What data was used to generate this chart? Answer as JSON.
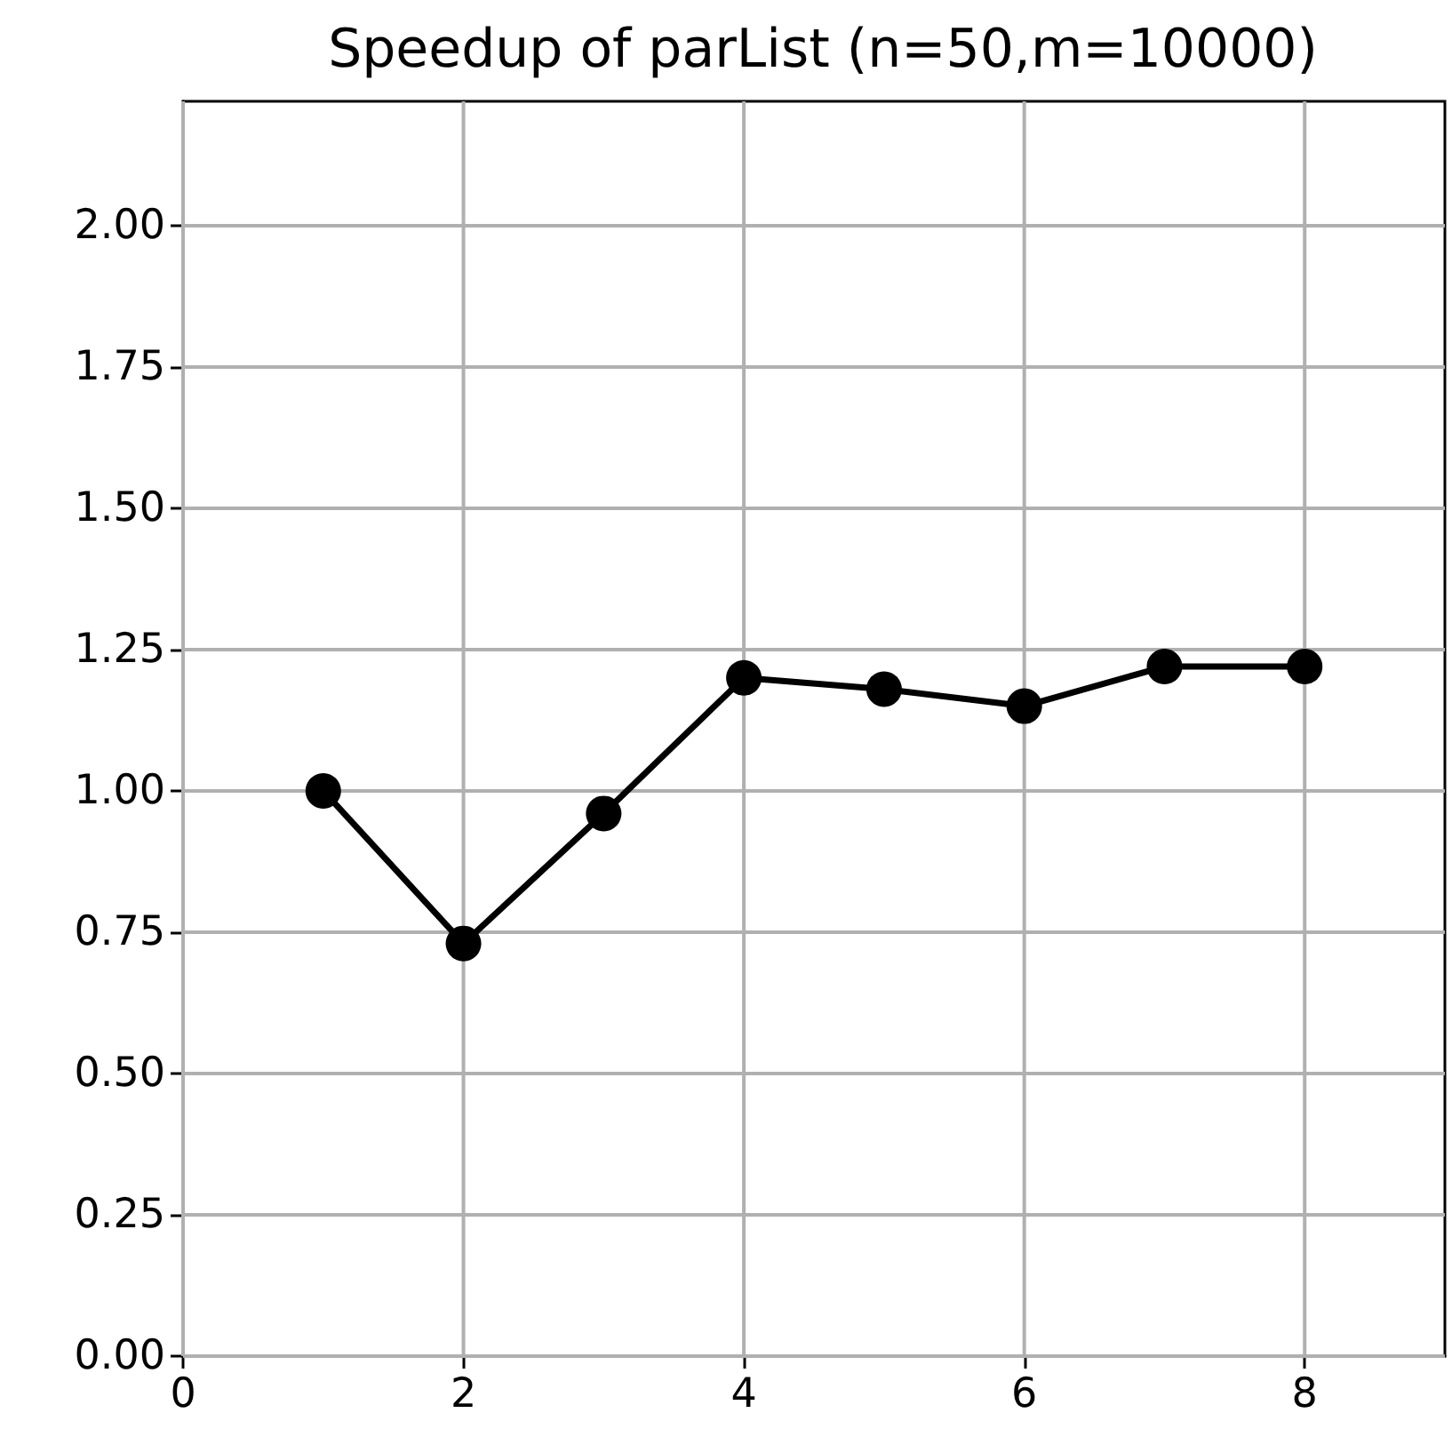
{
  "chart_data": {
    "type": "line",
    "title": "Speedup of parList (n=50,m=10000)",
    "x": [
      1,
      2,
      3,
      4,
      5,
      6,
      7,
      8
    ],
    "series": [
      {
        "color": "#000000",
        "values": [
          1.0,
          0.73,
          0.96,
          1.2,
          1.18,
          1.15,
          1.22,
          1.22
        ]
      }
    ],
    "xlim": [
      0,
      9
    ],
    "xticks": [
      0,
      2,
      4,
      6,
      8
    ],
    "ylim": [
      0,
      2.22
    ],
    "yticks": [
      {
        "value": 0,
        "label": "0.00"
      },
      {
        "value": 0.25,
        "label": "0.25"
      },
      {
        "value": 0.5,
        "label": "0.50"
      },
      {
        "value": 0.75,
        "label": "0.75"
      },
      {
        "value": 1,
        "label": "1.00"
      },
      {
        "value": 1.25,
        "label": "1.25"
      },
      {
        "value": 1.5,
        "label": "1.50"
      },
      {
        "value": 1.75,
        "label": "1.75"
      },
      {
        "value": 2,
        "label": "2.00"
      }
    ],
    "grid": true,
    "marker": "circle",
    "line_style": "solid"
  }
}
